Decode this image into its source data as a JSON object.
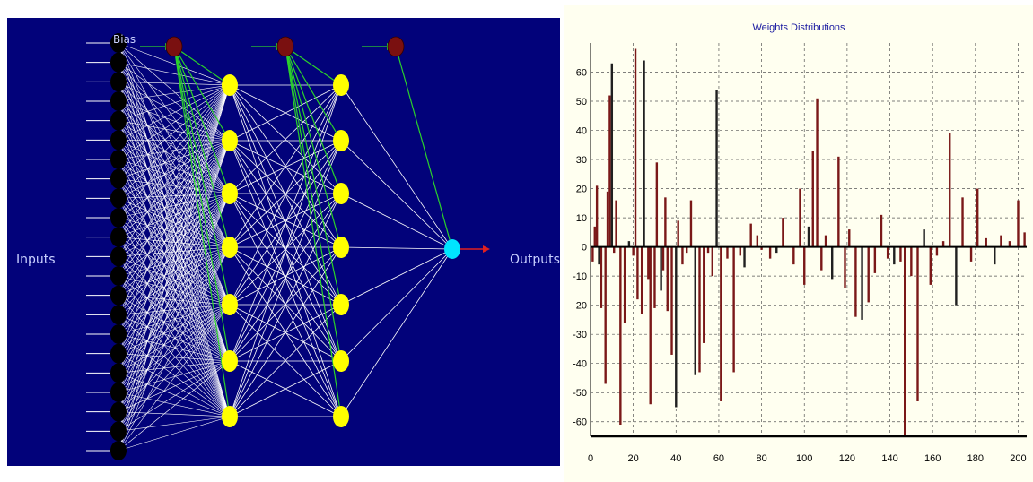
{
  "network": {
    "input_label": "Inputs",
    "output_label": "Outputs",
    "bias_label": "Bias",
    "colors": {
      "background": "#02027a",
      "input_node": "#000000",
      "hidden_node": "#ffff00",
      "bias_node": "#7a1010",
      "output_node": "#00e5ff",
      "connection": "#ffffff",
      "bias_connection": "#2bd12b",
      "output_arrow": "#e02020"
    }
  },
  "chart_data": {
    "type": "bar",
    "title": "Weights Distributions",
    "xlim": [
      0,
      204
    ],
    "ylim": [
      -65,
      70
    ],
    "x_ticks": [
      0,
      20,
      40,
      60,
      80,
      100,
      120,
      140,
      160,
      180,
      200
    ],
    "y_ticks": [
      60,
      50,
      40,
      30,
      20,
      10,
      0,
      -10,
      -20,
      -30,
      -40,
      -50,
      -60
    ],
    "grid": true,
    "colors": {
      "bar": "#7a1818",
      "bar_alt": "#202020",
      "axis": "#000000",
      "grid": "#555555",
      "title": "#1a1aa0"
    },
    "series": [
      {
        "x": [
          1,
          2,
          3,
          4,
          5,
          7,
          8,
          9,
          10,
          11,
          12,
          14,
          16,
          18,
          20,
          21,
          22,
          24,
          25,
          27,
          28,
          30,
          31,
          33,
          34,
          35,
          36,
          38,
          40,
          41,
          43,
          45,
          47,
          49,
          51,
          53,
          55,
          57,
          59,
          61,
          64,
          67,
          70,
          72,
          75,
          78,
          80,
          84,
          87,
          90,
          95,
          98,
          100,
          102,
          104,
          106,
          108,
          110,
          113,
          116,
          119,
          121,
          124,
          127,
          130,
          133,
          136,
          139,
          142,
          145,
          147,
          150,
          153,
          156,
          159,
          162,
          165,
          168,
          171,
          174,
          178,
          181,
          185,
          189,
          192,
          196,
          200,
          203
        ],
        "values": [
          -5,
          7,
          21,
          -6,
          -21,
          -47,
          19,
          52,
          63,
          -2,
          16,
          -61,
          -26,
          2,
          -3,
          68,
          -18,
          -23,
          64,
          -11,
          -54,
          -21,
          29,
          -15,
          -8,
          17,
          -22,
          -37,
          -55,
          9,
          -6,
          -2,
          16,
          -44,
          -43,
          -33,
          -2,
          -10,
          54,
          -53,
          -4,
          -43,
          -3,
          -7,
          8,
          4,
          -1,
          -4,
          -2,
          10,
          -6,
          20,
          -13,
          7,
          33,
          51,
          -8,
          4,
          -11,
          31,
          -14,
          6,
          -24,
          -25,
          -19,
          -9,
          11,
          -4,
          -6,
          -5,
          -65,
          -10,
          -53,
          6,
          -13,
          -3,
          2,
          39,
          -20,
          17,
          -5,
          20,
          3,
          -6,
          4,
          2,
          16,
          5
        ]
      }
    ]
  }
}
